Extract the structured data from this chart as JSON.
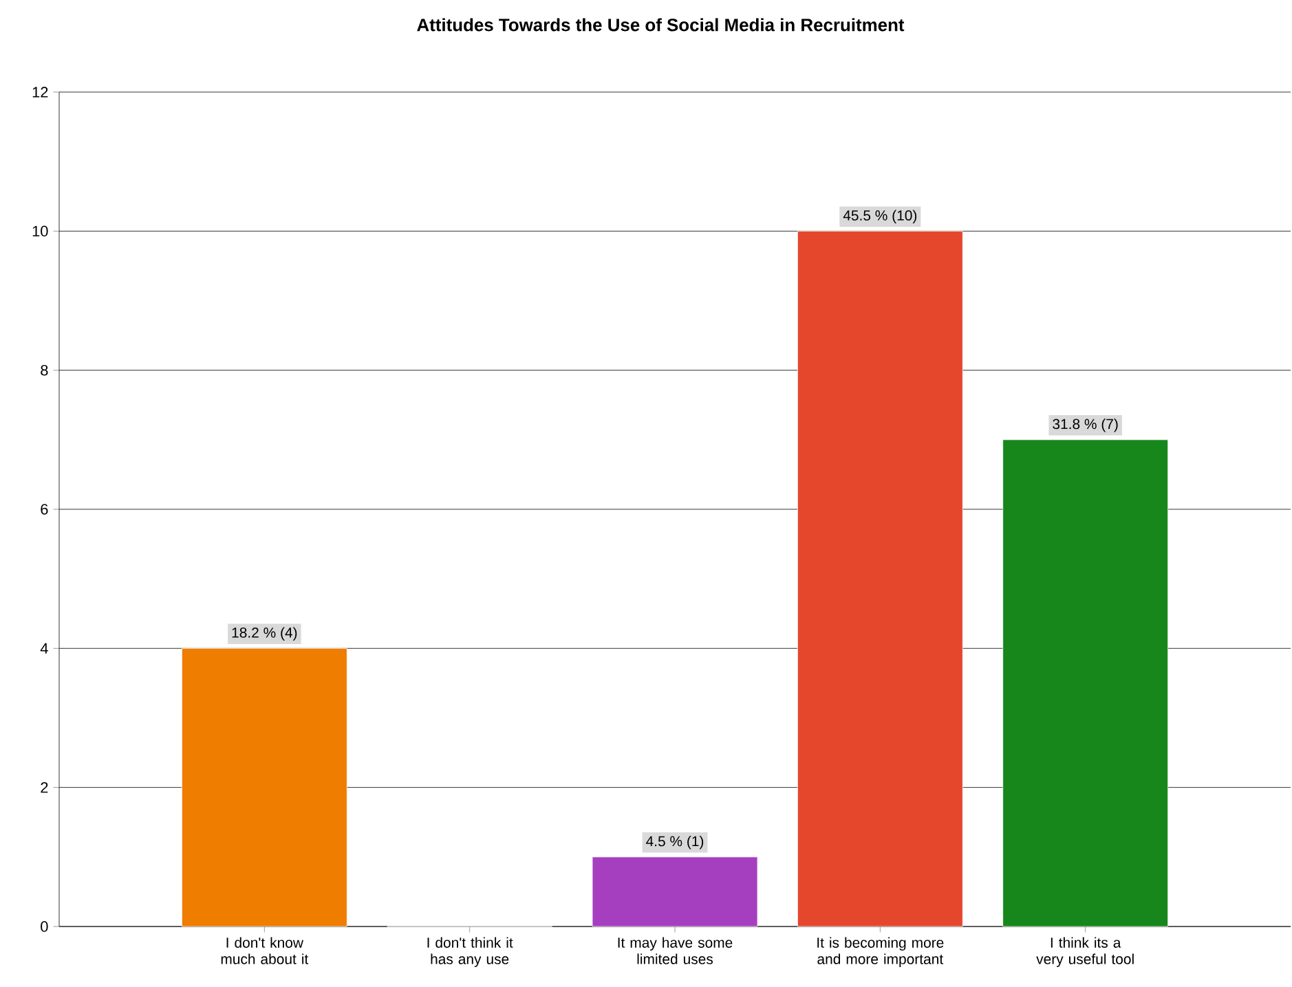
{
  "chart_data": {
    "type": "bar",
    "title": "Attitudes Towards the Use of Social Media in Recruitment",
    "categories": [
      "I don't know much about it",
      "I don't think it has any use",
      "It may have some limited uses",
      "It is becoming more and more important",
      "I think its a very useful tool"
    ],
    "values": [
      4,
      0,
      1,
      10,
      7
    ],
    "colors": [
      "#ef7d00",
      "#4f81bd",
      "#a53fbf",
      "#e5472d",
      "#17861b"
    ],
    "value_labels": [
      "18.2 % (4)",
      null,
      "4.5 % (1)",
      "45.5 % (10)",
      "31.8 % (7)"
    ],
    "ylim": [
      0,
      12
    ],
    "yticks": [
      0,
      2,
      4,
      6,
      8,
      10,
      12
    ],
    "grid": "y"
  }
}
